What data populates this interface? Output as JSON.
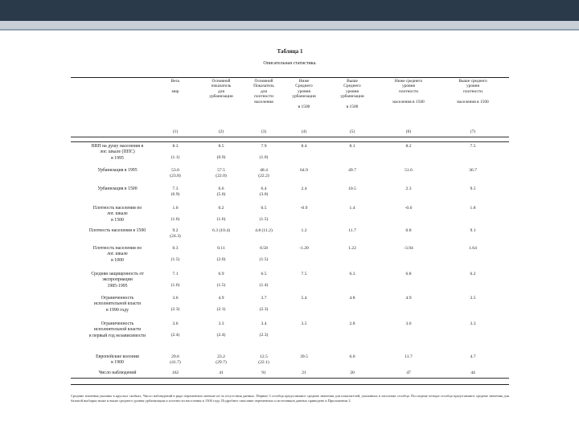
{
  "document": {
    "table_number": "Таблица 1",
    "table_caption": "Описательная статистика.",
    "columns": [
      {
        "key": "c1",
        "header": "Весь\n\nмир",
        "index": "(1)"
      },
      {
        "key": "c2",
        "header": "Основной\nпоказатель\nдля\nурбанизации",
        "index": "(2)"
      },
      {
        "key": "c3",
        "header": "Основной\nПоказатель\nдля\nплотности\nнаселения",
        "index": "(3)"
      },
      {
        "key": "c4",
        "header": "Ниже\nСреднего\nуровня\nурбанизации\n\nв 1500",
        "index": "(4)"
      },
      {
        "key": "c5",
        "header": "Выше\nСреднего\nуровня\nурбанизации\n\nв 1500",
        "index": "(5)"
      },
      {
        "key": "c6",
        "header": "Ниже среднего\nуровня\nплотности\n\nнаселения в 1500",
        "index": "(6)"
      },
      {
        "key": "c7",
        "header": "Выше среднего\nуровня\nплотности\n\nнаселения в 1500",
        "index": "(7)"
      }
    ],
    "rows": [
      {
        "label": "ВВП на душу населения в\nлог. шкале (ППС)\nв 1995",
        "c1": "8.3\n\n(1.1)",
        "c2": "8.5\n\n(0.9)",
        "c3": "7.9\n\n(1.0)",
        "c4": "8.4",
        "c5": "8.1",
        "c6": "8.2",
        "c7": "7.5"
      },
      {
        "label": "Урбанизация в 1995",
        "c1": "53.0\n(23.8)",
        "c2": "57.5\n(22.0)",
        "c3": "48.4\n(22.2)",
        "c4": "64.9",
        "c5": "49.7",
        "c6": "51.6",
        "c7": "36.7"
      },
      {
        "label": "Урбанизация в 1500",
        "c1": "7.3\n(6.9)",
        "c2": "6.6\n(5.0)",
        "c3": "6.4\n(3.0)",
        "c4": "2.4",
        "c5": "10.5",
        "c6": "2.3",
        "c7": "9.5"
      },
      {
        "label": "Плотность населения по\nлог. шкале\nв 1500",
        "c1": "1.0\n\n(1.6)",
        "c2": "0.2\n\n(1.6)",
        "c3": "0.5\n\n(1.5)",
        "c4": "-0.9",
        "c5": "1.4",
        "c6": "-0.6",
        "c7": "1.8"
      },
      {
        "label": "Плотность населения в 1500",
        "c1": "9.2\n(24.3)",
        "c2": "6.3 (10.4)",
        "c3": "4.8 (11.2)",
        "c4": "1.2",
        "c5": "11.7",
        "c6": "0.8",
        "c7": "9.1"
      },
      {
        "label": "Плотность населения по\nлог. шкале\nв 1000",
        "c1": "0.3\n\n(1.5)",
        "c2": "0.11\n\n(2.0)",
        "c3": "0.58\n\n(1.5)",
        "c4": "-1.20",
        "c5": "1.22",
        "c6": "-3.94",
        "c7": "1.64"
      },
      {
        "label": "Средняя защищенность от\nэкспроприации\n1985-1995",
        "c1": "7.1\n\n(1.6)",
        "c2": "6.9\n\n(1.5)",
        "c3": "6.5\n\n(1.4)",
        "c4": "7.5",
        "c5": "6.3",
        "c6": "6.8",
        "c7": "6.2"
      },
      {
        "label": "Ограниченность\nисполнительной власти\nв 1990 году",
        "c1": "3.6\n\n(2.3)",
        "c2": "4.9\n\n(2.1)",
        "c3": "3.7\n\n(2.3)",
        "c4": "5.4",
        "c5": "4.8",
        "c6": "4.9",
        "c7": "3.5"
      },
      {
        "label": "Ограниченность\nисполнительной власти\nв первый год независимости",
        "c1": "3.6\n\n(2.4)",
        "c2": "3.3\n\n(2.4)",
        "c3": "3.4\n\n(2.3)",
        "c4": "3.5",
        "c5": "2.8",
        "c6": "3.6",
        "c7": "3.3"
      },
      {
        "label": "Европейские колонии\nв 1900",
        "c1": "29.6\n(41.7)",
        "c2": "23.2\n(29.7)",
        "c3": "12.5\n(22.1)",
        "c4": "39.5",
        "c5": "6.0",
        "c6": "11.7",
        "c7": "4.7"
      },
      {
        "label": "Число наблюдений",
        "c1": "162",
        "c2": "41",
        "c3": "91",
        "c4": "21",
        "c5": "20",
        "c6": "47",
        "c7": "44"
      }
    ],
    "footnote": "Средние значения указаны в круглых скобках. Число наблюдений в ряде переменных меньше из-за отсутствия данных. Первые 3 столбца представляют средние значения для показателей, указанных в заголовке столбца. Последние четыре столбца представляют средние значения для базовой выборки ниже и выше среднего уровня урбанизации и плотности населения в 1500 году. Подробное описание переменных и источников данных приведено в Приложении 2."
  }
}
